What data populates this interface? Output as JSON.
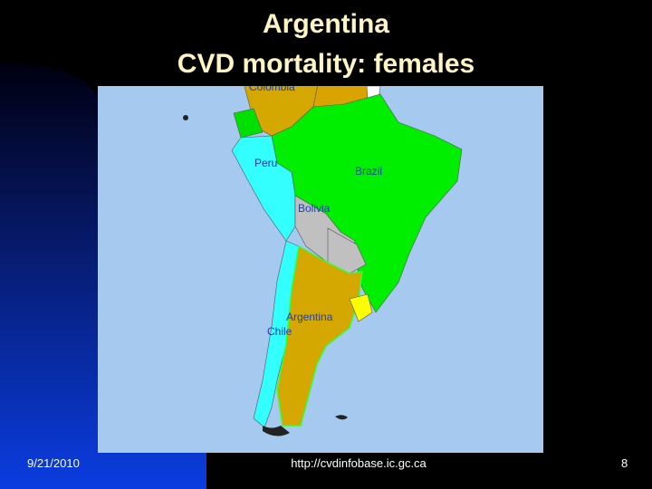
{
  "header": {
    "title": [
      "Argentina",
      "CVD mortality: females"
    ]
  },
  "map": {
    "labels": [
      "Colombia",
      "Peru",
      "Brazil",
      "Bolivia",
      "Argentina",
      "Chile"
    ]
  },
  "footer": {
    "date": "9/21/2010",
    "url": "http://cvdinfobase.ic.gc.ca",
    "page": "8"
  }
}
